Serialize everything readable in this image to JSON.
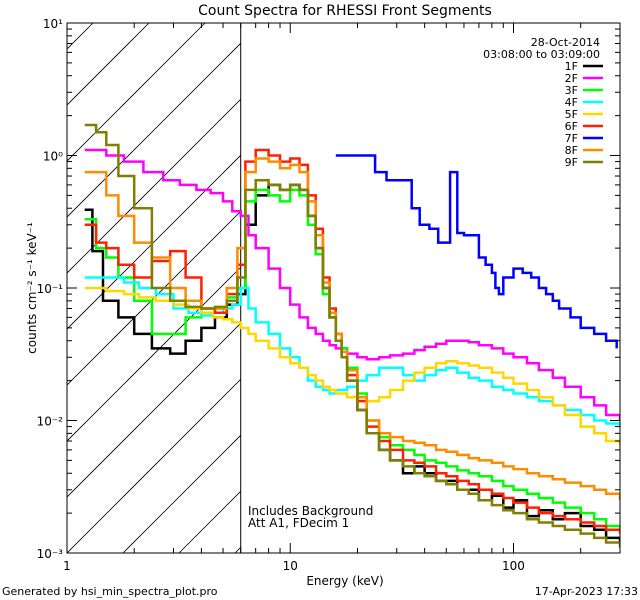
{
  "chart_data": {
    "type": "line",
    "title": "Count Spectra for RHESSI Front Segments",
    "xlabel": "Energy (keV)",
    "ylabel": "counts cm⁻² s⁻¹ keV⁻¹",
    "xscale": "log",
    "yscale": "log",
    "xlim": [
      1,
      300
    ],
    "ylim": [
      0.001,
      10
    ],
    "x_ticks": [
      {
        "value": 1,
        "label": "1"
      },
      {
        "value": 10,
        "label": "10"
      },
      {
        "value": 100,
        "label": "100"
      }
    ],
    "y_ticks": [
      {
        "value": 0.001,
        "label": "10⁻³"
      },
      {
        "value": 0.01,
        "label": "10⁻²"
      },
      {
        "value": 0.1,
        "label": "10⁻¹"
      },
      {
        "value": 1,
        "label": "10⁰"
      },
      {
        "value": 10,
        "label": "10¹"
      }
    ],
    "hatched_region_upper_keV": 6,
    "date": "28-Oct-2014",
    "time_range": "03:08:00 to 03:09:00",
    "annotations": [
      "Includes Background",
      "Att A1, FDecim 1"
    ],
    "footer_left": "Generated by hsi_min_spectra_plot.pro",
    "footer_right": "17-Apr-2023 17:33",
    "series": [
      {
        "name": "1F",
        "color": "#000000",
        "x": [
          1.2,
          1.3,
          1.45,
          1.7,
          2.0,
          2.4,
          2.9,
          3.4,
          4.0,
          4.6,
          5.2,
          5.8,
          6.3,
          7,
          8,
          9,
          10,
          11,
          12,
          13,
          14,
          15,
          16,
          17,
          18,
          20,
          22,
          25,
          28,
          32,
          36,
          40,
          45,
          50,
          56,
          63,
          70,
          80,
          90,
          100,
          115,
          130,
          150,
          170,
          200,
          230,
          260,
          300
        ],
        "y": [
          0.39,
          0.19,
          0.08,
          0.06,
          0.045,
          0.035,
          0.032,
          0.04,
          0.05,
          0.06,
          0.075,
          0.09,
          0.3,
          0.5,
          0.6,
          0.55,
          0.6,
          0.55,
          0.35,
          0.2,
          0.1,
          0.06,
          0.04,
          0.03,
          0.02,
          0.012,
          0.008,
          0.006,
          0.005,
          0.004,
          0.0045,
          0.004,
          0.0035,
          0.0035,
          0.003,
          0.003,
          0.0025,
          0.0027,
          0.0022,
          0.0025,
          0.0019,
          0.0021,
          0.0018,
          0.002,
          0.0016,
          0.0015,
          0.0013,
          0.0012
        ]
      },
      {
        "name": "2F",
        "color": "#ff00ff",
        "x": [
          1.2,
          1.5,
          1.8,
          2.2,
          2.7,
          3.2,
          3.8,
          4.4,
          5,
          5.5,
          6,
          6.5,
          7,
          8,
          9,
          10,
          11,
          12,
          13,
          14,
          15,
          16,
          18,
          20,
          22,
          25,
          28,
          32,
          36,
          40,
          45,
          50,
          56,
          63,
          70,
          80,
          90,
          100,
          115,
          130,
          150,
          170,
          200,
          230,
          260,
          300
        ],
        "y": [
          1.1,
          1.0,
          0.9,
          0.75,
          0.65,
          0.6,
          0.55,
          0.52,
          0.45,
          0.38,
          0.35,
          0.25,
          0.2,
          0.14,
          0.1,
          0.075,
          0.06,
          0.05,
          0.045,
          0.04,
          0.037,
          0.035,
          0.032,
          0.03,
          0.029,
          0.03,
          0.031,
          0.032,
          0.034,
          0.036,
          0.038,
          0.04,
          0.04,
          0.039,
          0.037,
          0.035,
          0.032,
          0.03,
          0.027,
          0.024,
          0.021,
          0.018,
          0.015,
          0.013,
          0.011,
          0.01
        ]
      },
      {
        "name": "3F",
        "color": "#00ff00",
        "x": [
          1.2,
          1.35,
          1.5,
          1.7,
          2.0,
          2.4,
          2.9,
          3.4,
          4.0,
          4.6,
          5.2,
          5.8,
          6.3,
          7,
          8,
          9,
          10,
          11,
          12,
          13,
          14,
          15,
          16,
          17,
          18,
          20,
          22,
          25,
          28,
          32,
          36,
          40,
          45,
          50,
          56,
          63,
          70,
          80,
          90,
          100,
          115,
          130,
          150,
          170,
          200,
          230,
          260,
          300
        ],
        "y": [
          0.33,
          0.2,
          0.17,
          0.12,
          0.08,
          0.045,
          0.045,
          0.06,
          0.065,
          0.07,
          0.085,
          0.1,
          0.45,
          0.55,
          0.5,
          0.45,
          0.55,
          0.5,
          0.3,
          0.18,
          0.09,
          0.06,
          0.045,
          0.035,
          0.025,
          0.016,
          0.01,
          0.0075,
          0.0065,
          0.006,
          0.0055,
          0.005,
          0.0048,
          0.0045,
          0.0042,
          0.004,
          0.0038,
          0.0035,
          0.0032,
          0.003,
          0.0028,
          0.0026,
          0.0024,
          0.0022,
          0.002,
          0.0018,
          0.0016,
          0.0015
        ]
      },
      {
        "name": "4F",
        "color": "#00ffff",
        "x": [
          1.2,
          1.5,
          1.8,
          2.1,
          2.5,
          3,
          3.5,
          4,
          4.5,
          5,
          5.5,
          6,
          6.5,
          7,
          8,
          9,
          10,
          11,
          12,
          13,
          14,
          15,
          16,
          18,
          20,
          22,
          25,
          28,
          32,
          36,
          40,
          45,
          50,
          56,
          63,
          70,
          80,
          90,
          100,
          115,
          130,
          150,
          170,
          200,
          230,
          260,
          300
        ],
        "y": [
          0.12,
          0.12,
          0.11,
          0.1,
          0.09,
          0.07,
          0.065,
          0.062,
          0.065,
          0.07,
          0.075,
          0.1,
          0.07,
          0.055,
          0.045,
          0.035,
          0.03,
          0.025,
          0.02,
          0.018,
          0.017,
          0.016,
          0.017,
          0.018,
          0.02,
          0.022,
          0.025,
          0.025,
          0.022,
          0.02,
          0.022,
          0.024,
          0.025,
          0.023,
          0.021,
          0.02,
          0.018,
          0.017,
          0.016,
          0.015,
          0.014,
          0.013,
          0.012,
          0.011,
          0.01,
          0.0095,
          0.009
        ]
      },
      {
        "name": "5F",
        "color": "#ffd700",
        "x": [
          1.2,
          1.5,
          1.8,
          2.1,
          2.5,
          3,
          3.5,
          4,
          4.5,
          5,
          5.5,
          6,
          6.5,
          7,
          8,
          9,
          10,
          11,
          12,
          13,
          14,
          15,
          16,
          18,
          20,
          22,
          25,
          28,
          32,
          36,
          40,
          45,
          50,
          56,
          63,
          70,
          80,
          90,
          100,
          115,
          130,
          150,
          170,
          200,
          230,
          260,
          300
        ],
        "y": [
          0.1,
          0.095,
          0.09,
          0.085,
          0.08,
          0.075,
          0.07,
          0.065,
          0.06,
          0.058,
          0.055,
          0.05,
          0.045,
          0.04,
          0.035,
          0.03,
          0.027,
          0.025,
          0.022,
          0.02,
          0.018,
          0.017,
          0.016,
          0.015,
          0.014,
          0.014,
          0.015,
          0.017,
          0.02,
          0.023,
          0.025,
          0.027,
          0.028,
          0.027,
          0.026,
          0.025,
          0.023,
          0.021,
          0.019,
          0.017,
          0.015,
          0.013,
          0.011,
          0.009,
          0.008,
          0.007,
          0.0065
        ]
      },
      {
        "name": "6F",
        "color": "#ff2000",
        "x": [
          1.2,
          1.35,
          1.5,
          1.7,
          2.0,
          2.4,
          2.9,
          3.4,
          4.0,
          4.6,
          5.2,
          5.8,
          6.3,
          7,
          8,
          9,
          10,
          11,
          12,
          13,
          14,
          15,
          16,
          17,
          18,
          20,
          22,
          25,
          28,
          32,
          36,
          40,
          45,
          50,
          56,
          63,
          70,
          80,
          90,
          100,
          115,
          130,
          150,
          170,
          200,
          230,
          260,
          300
        ],
        "y": [
          0.3,
          0.22,
          0.2,
          0.15,
          0.12,
          0.16,
          0.19,
          0.12,
          0.07,
          0.065,
          0.09,
          0.15,
          0.9,
          1.1,
          1.0,
          0.9,
          0.95,
          0.85,
          0.5,
          0.28,
          0.12,
          0.07,
          0.045,
          0.033,
          0.022,
          0.014,
          0.009,
          0.007,
          0.006,
          0.005,
          0.0048,
          0.0045,
          0.004,
          0.0038,
          0.0035,
          0.0033,
          0.003,
          0.0028,
          0.0026,
          0.0024,
          0.0022,
          0.002,
          0.0019,
          0.0018,
          0.0017,
          0.0016,
          0.0015,
          0.0014
        ]
      },
      {
        "name": "8F",
        "color": "#ff8c00",
        "x": [
          1.2,
          1.35,
          1.5,
          1.7,
          2.0,
          2.4,
          2.9,
          3.4,
          4.0,
          4.6,
          5.2,
          5.8,
          6.3,
          7,
          8,
          9,
          10,
          11,
          12,
          13,
          14,
          15,
          16,
          17,
          18,
          20,
          22,
          25,
          28,
          32,
          36,
          40,
          45,
          50,
          56,
          63,
          70,
          80,
          90,
          100,
          115,
          130,
          150,
          170,
          200,
          230,
          260,
          300
        ],
        "y": [
          0.75,
          0.75,
          0.5,
          0.35,
          0.22,
          0.17,
          0.1,
          0.08,
          0.07,
          0.07,
          0.1,
          0.2,
          0.75,
          0.95,
          0.9,
          0.8,
          0.85,
          0.75,
          0.45,
          0.25,
          0.11,
          0.065,
          0.045,
          0.033,
          0.024,
          0.015,
          0.01,
          0.008,
          0.0075,
          0.007,
          0.0068,
          0.0065,
          0.006,
          0.0058,
          0.0055,
          0.0052,
          0.005,
          0.0048,
          0.0045,
          0.0043,
          0.004,
          0.0038,
          0.0036,
          0.0034,
          0.0032,
          0.003,
          0.0028,
          0.0025
        ]
      },
      {
        "name": "9F",
        "color": "#808000",
        "x": [
          1.2,
          1.35,
          1.5,
          1.7,
          2.0,
          2.4,
          2.9,
          3.4,
          4.0,
          4.6,
          5.2,
          5.8,
          6.3,
          7,
          8,
          9,
          10,
          11,
          12,
          13,
          14,
          15,
          16,
          17,
          18,
          20,
          22,
          25,
          28,
          32,
          36,
          40,
          45,
          50,
          56,
          63,
          70,
          80,
          90,
          100,
          115,
          130,
          150,
          170,
          200,
          230,
          260,
          300
        ],
        "y": [
          1.7,
          1.5,
          1.2,
          0.7,
          0.4,
          0.1,
          0.08,
          0.072,
          0.07,
          0.072,
          0.08,
          0.12,
          0.55,
          0.65,
          0.6,
          0.55,
          0.6,
          0.55,
          0.35,
          0.2,
          0.1,
          0.06,
          0.04,
          0.03,
          0.02,
          0.012,
          0.008,
          0.006,
          0.005,
          0.0045,
          0.004,
          0.0038,
          0.0035,
          0.0033,
          0.003,
          0.0028,
          0.0025,
          0.0023,
          0.0021,
          0.002,
          0.0018,
          0.0017,
          0.0016,
          0.0015,
          0.0014,
          0.0013,
          0.0012,
          0.0011
        ]
      },
      {
        "name": "7F",
        "color": "#0000ff",
        "x": [
          16,
          24,
          27,
          35,
          38,
          40,
          42,
          46,
          50,
          52,
          56,
          60,
          70,
          75,
          80,
          83,
          86,
          90,
          100,
          110,
          120,
          130,
          140,
          150,
          160,
          180,
          200,
          230,
          260,
          290
        ],
        "y": [
          1.0,
          0.75,
          0.65,
          0.4,
          0.3,
          0.3,
          0.28,
          0.22,
          0.22,
          0.75,
          0.26,
          0.25,
          0.17,
          0.15,
          0.13,
          0.1,
          0.09,
          0.12,
          0.14,
          0.13,
          0.12,
          0.1,
          0.09,
          0.08,
          0.07,
          0.06,
          0.05,
          0.045,
          0.04,
          0.035
        ]
      }
    ]
  }
}
